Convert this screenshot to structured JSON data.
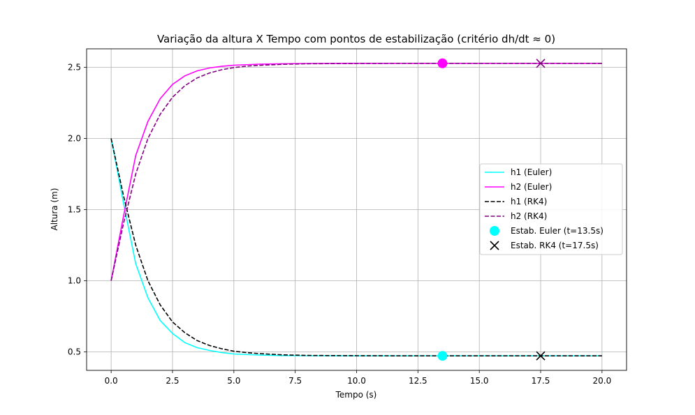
{
  "chart_data": {
    "type": "line",
    "title": "Variação da altura X Tempo com pontos de estabilização (critério dh/dt ≈ 0)",
    "xlabel": "Tempo (s)",
    "ylabel": "Altura (m)",
    "xlim": [
      -1.0,
      21.0
    ],
    "ylim": [
      0.37,
      2.63
    ],
    "xticks": [
      0.0,
      2.5,
      5.0,
      7.5,
      10.0,
      12.5,
      15.0,
      17.5,
      20.0
    ],
    "xtick_labels": [
      "0.0",
      "2.5",
      "5.0",
      "7.5",
      "10.0",
      "12.5",
      "15.0",
      "17.5",
      "20.0"
    ],
    "yticks": [
      0.5,
      1.0,
      1.5,
      2.0,
      2.5
    ],
    "ytick_labels": [
      "0.5",
      "1.0",
      "1.5",
      "2.0",
      "2.5"
    ],
    "grid": true,
    "legend_position": "center-right",
    "series": [
      {
        "name": "h1 (Euler)",
        "color": "#00ffff",
        "dash": "solid",
        "x": [
          0,
          0.5,
          1.0,
          1.5,
          2.0,
          2.5,
          3.0,
          3.5,
          4.0,
          4.5,
          5.0,
          6.0,
          7.0,
          8.0,
          10.0,
          12.0,
          14.0,
          16.0,
          18.0,
          20.0
        ],
        "y": [
          2.0,
          1.55,
          1.12,
          0.88,
          0.72,
          0.63,
          0.565,
          0.53,
          0.51,
          0.495,
          0.485,
          0.478,
          0.474,
          0.473,
          0.472,
          0.472,
          0.472,
          0.472,
          0.472,
          0.472
        ]
      },
      {
        "name": "h2 (Euler)",
        "color": "#ff00ff",
        "dash": "solid",
        "x": [
          0,
          0.5,
          1.0,
          1.5,
          2.0,
          2.5,
          3.0,
          3.5,
          4.0,
          4.5,
          5.0,
          6.0,
          7.0,
          8.0,
          10.0,
          12.0,
          14.0,
          16.0,
          18.0,
          20.0
        ],
        "y": [
          1.0,
          1.45,
          1.88,
          2.12,
          2.28,
          2.38,
          2.44,
          2.475,
          2.495,
          2.507,
          2.515,
          2.522,
          2.525,
          2.527,
          2.528,
          2.528,
          2.528,
          2.528,
          2.528,
          2.528
        ]
      },
      {
        "name": "h1 (RK4)",
        "color": "#000000",
        "dash": "dashed",
        "x": [
          0,
          0.5,
          1.0,
          1.5,
          2.0,
          2.5,
          3.0,
          3.5,
          4.0,
          4.5,
          5.0,
          5.5,
          6.0,
          7.0,
          8.0,
          10.0,
          12.0,
          14.0,
          16.0,
          18.0,
          20.0
        ],
        "y": [
          2.0,
          1.6,
          1.25,
          1.0,
          0.83,
          0.71,
          0.635,
          0.58,
          0.545,
          0.522,
          0.505,
          0.495,
          0.488,
          0.479,
          0.475,
          0.473,
          0.472,
          0.472,
          0.472,
          0.472,
          0.472
        ]
      },
      {
        "name": "h2 (RK4)",
        "color": "#800080",
        "dash": "dashed",
        "x": [
          0,
          0.5,
          1.0,
          1.5,
          2.0,
          2.5,
          3.0,
          3.5,
          4.0,
          4.5,
          5.0,
          5.5,
          6.0,
          7.0,
          8.0,
          10.0,
          12.0,
          14.0,
          16.0,
          18.0,
          20.0
        ],
        "y": [
          1.0,
          1.4,
          1.75,
          2.0,
          2.17,
          2.29,
          2.37,
          2.425,
          2.46,
          2.483,
          2.498,
          2.508,
          2.514,
          2.521,
          2.525,
          2.527,
          2.528,
          2.528,
          2.528,
          2.528,
          2.528
        ]
      }
    ],
    "stabilization_points": [
      {
        "name": "Estab. Euler (t=13.5s)",
        "marker": "circle",
        "color": "#00ffff",
        "points": [
          {
            "x": 13.5,
            "y": 0.472,
            "color": "#00ffff"
          },
          {
            "x": 13.5,
            "y": 2.528,
            "color": "#ff00ff"
          }
        ]
      },
      {
        "name": "Estab. RK4 (t=17.5s)",
        "marker": "x",
        "color": "#000000",
        "points": [
          {
            "x": 17.5,
            "y": 0.472,
            "color": "#000000"
          },
          {
            "x": 17.5,
            "y": 2.528,
            "color": "#800080"
          }
        ]
      }
    ]
  }
}
